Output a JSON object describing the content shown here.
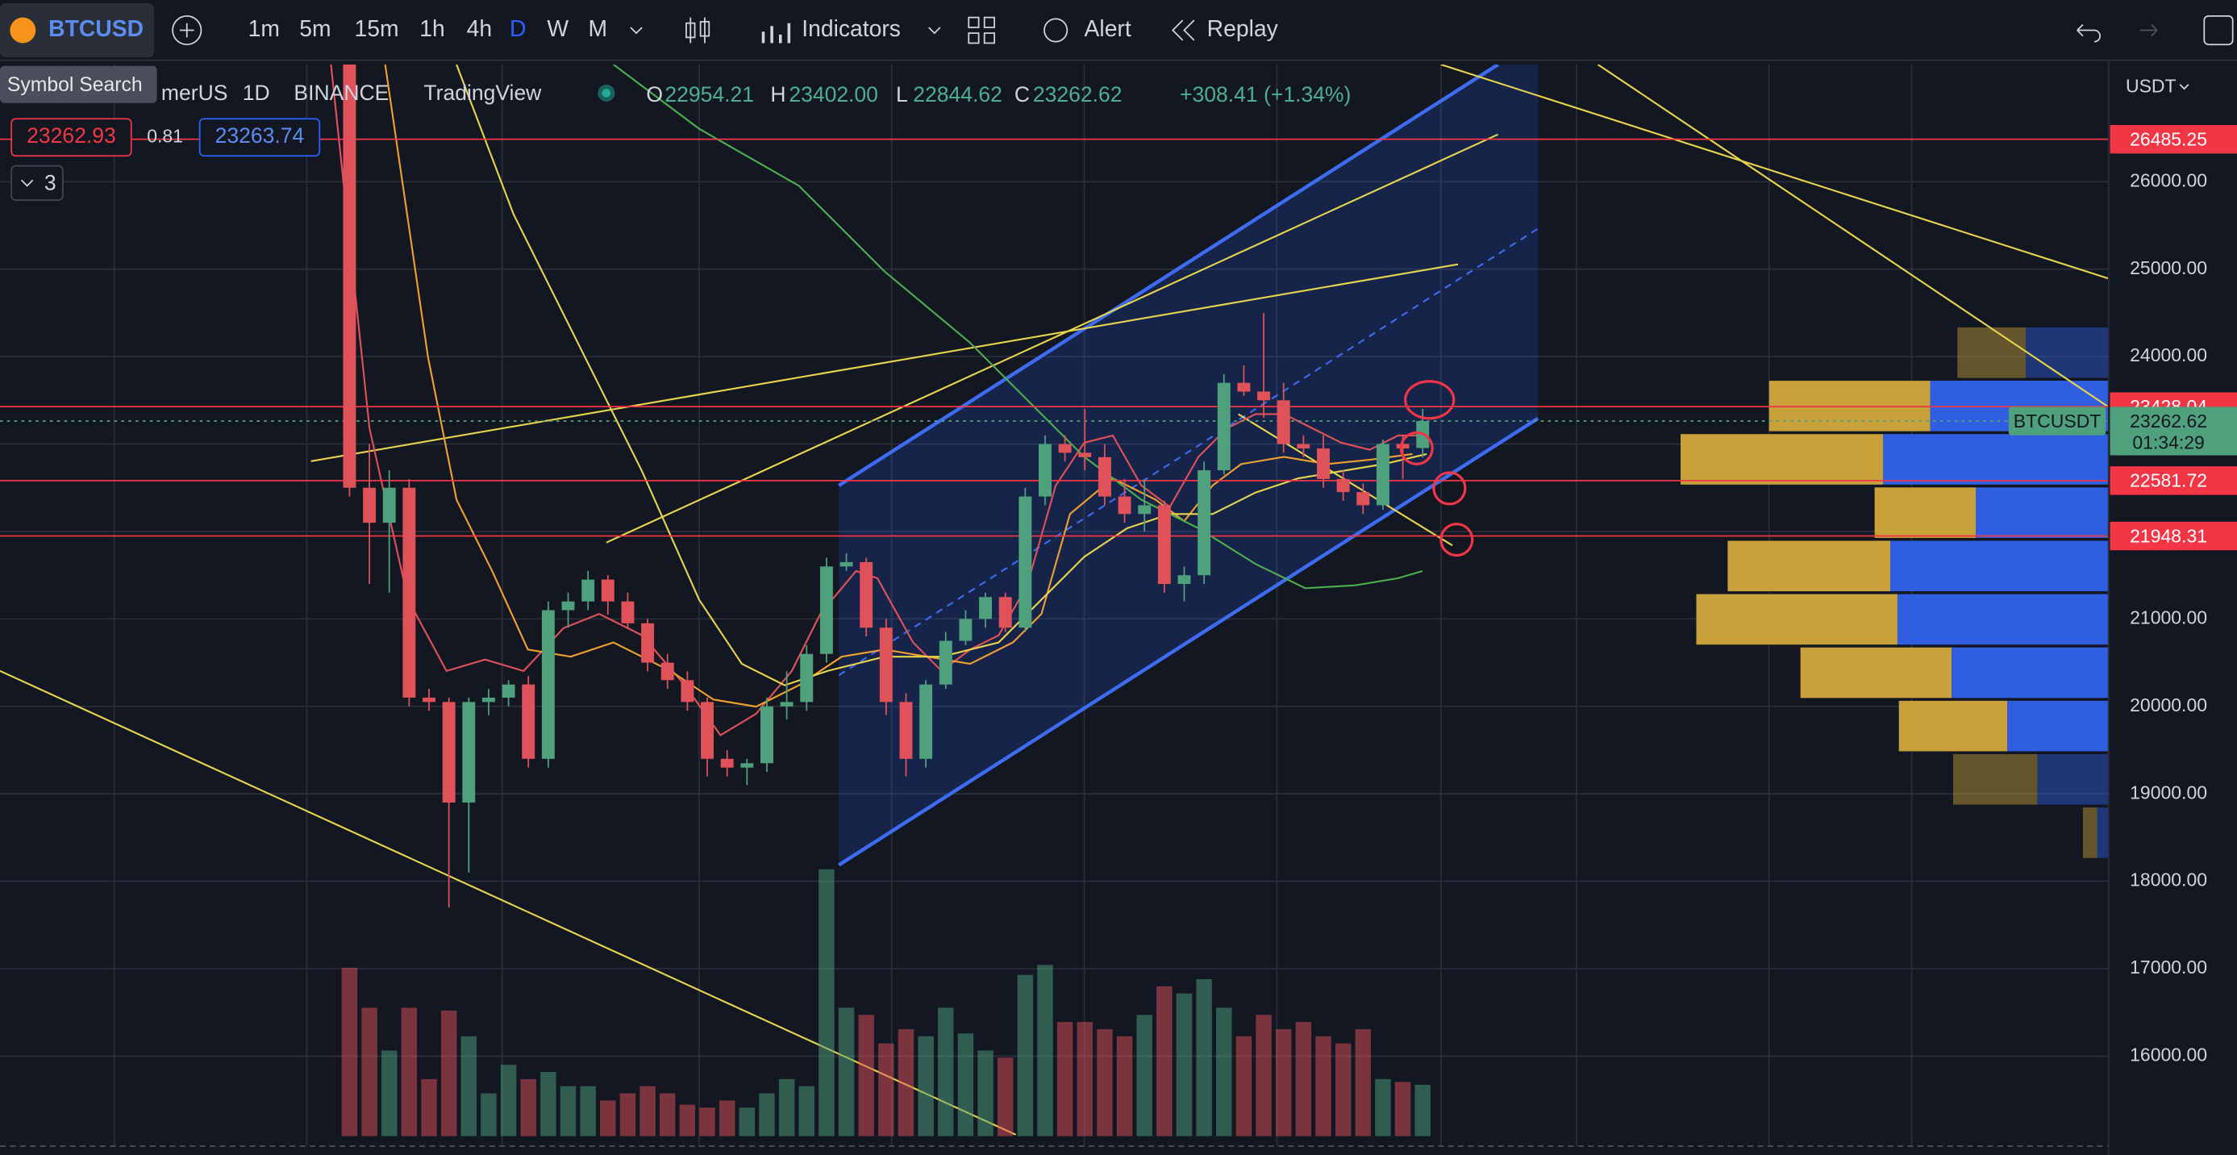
{
  "toolbar": {
    "symbol": "BTCUSD",
    "intervals": [
      "1m",
      "5m",
      "15m",
      "1h",
      "4h",
      "D",
      "W",
      "M"
    ],
    "active_interval": 5,
    "indicators": "Indicators",
    "alert": "Alert",
    "replay": "Replay"
  },
  "tooltip": "Symbol Search",
  "legend": {
    "symbol": "merUS",
    "interval": "1D",
    "exchange": "BINANCE",
    "source": "TradingView",
    "ohlc_labels": [
      "O",
      "H",
      "L",
      "C"
    ],
    "open": "22954.21",
    "high": "23402.00",
    "low": "22844.62",
    "close": "23262.62",
    "change": "+308.41 (+1.34%)"
  },
  "bid": "23262.93",
  "spread": "0.81",
  "ask": "23263.74",
  "indicator_count": "3",
  "chart_data": {
    "type": "candlestick",
    "currency": "USDT",
    "ylim": [
      15020,
      27340
    ],
    "yticks": [
      {
        "value": 16000,
        "label": "16000.00"
      },
      {
        "value": 17000,
        "label": "17000.00"
      },
      {
        "value": 18000,
        "label": "18000.00"
      },
      {
        "value": 19000,
        "label": "19000.00"
      },
      {
        "value": 20000,
        "label": "20000.00"
      },
      {
        "value": 21000,
        "label": "21000.00"
      },
      {
        "value": 22000,
        "label": "22000.00"
      },
      {
        "value": 23000,
        "label": "23000.00"
      },
      {
        "value": 24000,
        "label": "24000.00"
      },
      {
        "value": 25000,
        "label": "25000.00"
      },
      {
        "value": 26000,
        "label": "26000.00"
      }
    ],
    "grid": true,
    "up_color": "#4fa17d",
    "down_color": "#e0525a",
    "candles": [
      [
        27400,
        27500,
        22400,
        22500
      ],
      [
        22500,
        23000,
        21400,
        22100
      ],
      [
        22100,
        22700,
        21300,
        22500
      ],
      [
        22500,
        22600,
        20000,
        20100
      ],
      [
        20100,
        20200,
        19950,
        20050
      ],
      [
        20050,
        20100,
        17700,
        18900
      ],
      [
        18900,
        20100,
        18100,
        20050
      ],
      [
        20050,
        20200,
        19900,
        20100
      ],
      [
        20100,
        20300,
        20000,
        20250
      ],
      [
        20250,
        20350,
        19300,
        19400
      ],
      [
        19400,
        21200,
        19300,
        21100
      ],
      [
        21100,
        21300,
        20900,
        21200
      ],
      [
        21200,
        21550,
        21100,
        21450
      ],
      [
        21450,
        21500,
        21050,
        21200
      ],
      [
        21200,
        21300,
        20900,
        20950
      ],
      [
        20950,
        21000,
        20400,
        20500
      ],
      [
        20500,
        20600,
        20200,
        20300
      ],
      [
        20300,
        20400,
        19950,
        20050
      ],
      [
        20050,
        20100,
        19200,
        19400
      ],
      [
        19400,
        19500,
        19200,
        19300
      ],
      [
        19300,
        19400,
        19100,
        19350
      ],
      [
        19350,
        20100,
        19250,
        20000
      ],
      [
        20000,
        20400,
        19850,
        20050
      ],
      [
        20050,
        20700,
        19950,
        20600
      ],
      [
        20600,
        21700,
        20500,
        21600
      ],
      [
        21600,
        21750,
        21550,
        21650
      ],
      [
        21650,
        21700,
        20800,
        20900
      ],
      [
        20900,
        21000,
        19900,
        20050
      ],
      [
        20050,
        20150,
        19200,
        19400
      ],
      [
        19400,
        20300,
        19300,
        20250
      ],
      [
        20250,
        20850,
        20200,
        20750
      ],
      [
        20750,
        21100,
        20700,
        21000
      ],
      [
        21000,
        21300,
        20900,
        21250
      ],
      [
        21250,
        21300,
        20850,
        20900
      ],
      [
        20900,
        22500,
        20850,
        22400
      ],
      [
        22400,
        23100,
        22300,
        23000
      ],
      [
        23000,
        23100,
        22800,
        22900
      ],
      [
        22900,
        23400,
        22700,
        22850
      ],
      [
        22850,
        23000,
        22300,
        22400
      ],
      [
        22400,
        22600,
        22100,
        22200
      ],
      [
        22200,
        22600,
        22000,
        22300
      ],
      [
        22300,
        22350,
        21300,
        21400
      ],
      [
        21400,
        21600,
        21200,
        21500
      ],
      [
        21500,
        22800,
        21400,
        22700
      ],
      [
        22700,
        23800,
        22650,
        23700
      ],
      [
        23700,
        23900,
        23550,
        23600
      ],
      [
        23600,
        24500,
        23300,
        23500
      ],
      [
        23500,
        23700,
        22900,
        23000
      ],
      [
        23000,
        23100,
        22850,
        22950
      ],
      [
        22950,
        23100,
        22500,
        22600
      ],
      [
        22600,
        22700,
        22350,
        22450
      ],
      [
        22450,
        22550,
        22200,
        22300
      ],
      [
        22300,
        23050,
        22250,
        23000
      ],
      [
        23000,
        23100,
        22600,
        22950
      ],
      [
        22954.21,
        23402,
        22844.62,
        23262.62
      ]
    ],
    "volume": [
      118,
      90,
      60,
      90,
      40,
      88,
      70,
      30,
      50,
      40,
      45,
      35,
      35,
      25,
      30,
      35,
      30,
      22,
      20,
      25,
      20,
      30,
      40,
      35,
      187,
      90,
      85,
      65,
      75,
      70,
      90,
      72,
      60,
      55,
      113,
      120,
      80,
      80,
      75,
      70,
      85,
      105,
      100,
      110,
      90,
      70,
      85,
      75,
      80,
      70,
      65,
      75,
      40,
      38,
      36
    ],
    "price_lines": [
      26485.25,
      23428.04,
      22581.72,
      21948.31
    ],
    "last_price": {
      "label": "BTCUSDT",
      "value": 23262.62,
      "countdown": "01:34:29"
    },
    "volume_profile": {
      "value_area": [
        19470,
        23740
      ],
      "rows": [
        [
          18250,
          18860,
          18,
          8
        ],
        [
          18860,
          19470,
          109,
          50
        ],
        [
          19470,
          20080,
          147,
          71
        ],
        [
          20080,
          20690,
          216,
          110
        ],
        [
          20690,
          21300,
          289,
          148
        ],
        [
          21300,
          21910,
          267,
          153
        ],
        [
          21910,
          22520,
          164,
          93
        ],
        [
          22520,
          23130,
          300,
          158
        ],
        [
          23130,
          23740,
          238,
          125
        ],
        [
          23740,
          24350,
          106,
          58
        ]
      ]
    }
  }
}
